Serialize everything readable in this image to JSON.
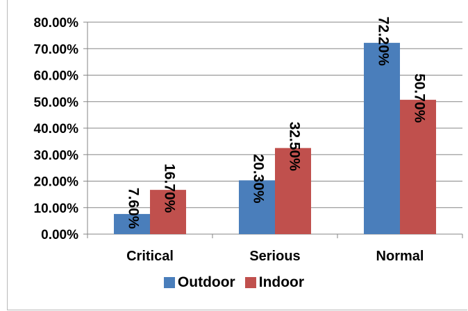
{
  "chart_data": {
    "type": "bar",
    "categories": [
      "Critical",
      "Serious",
      "Normal"
    ],
    "series": [
      {
        "name": "Outdoor",
        "values": [
          7.6,
          20.3,
          72.2
        ],
        "labels": [
          "7.60%",
          "20.30%",
          "72.20%"
        ],
        "color": "#4a7ebb"
      },
      {
        "name": "Indoor",
        "values": [
          16.7,
          32.5,
          50.7
        ],
        "labels": [
          "16.70%",
          "32.50%",
          "50.70%"
        ],
        "color": "#c0504d"
      }
    ],
    "ylim": [
      0,
      80
    ],
    "yticks": [
      "0.00%",
      "10.00%",
      "20.00%",
      "30.00%",
      "40.00%",
      "50.00%",
      "60.00%",
      "70.00%",
      "80.00%"
    ],
    "grid": true,
    "legend_position": "bottom"
  }
}
